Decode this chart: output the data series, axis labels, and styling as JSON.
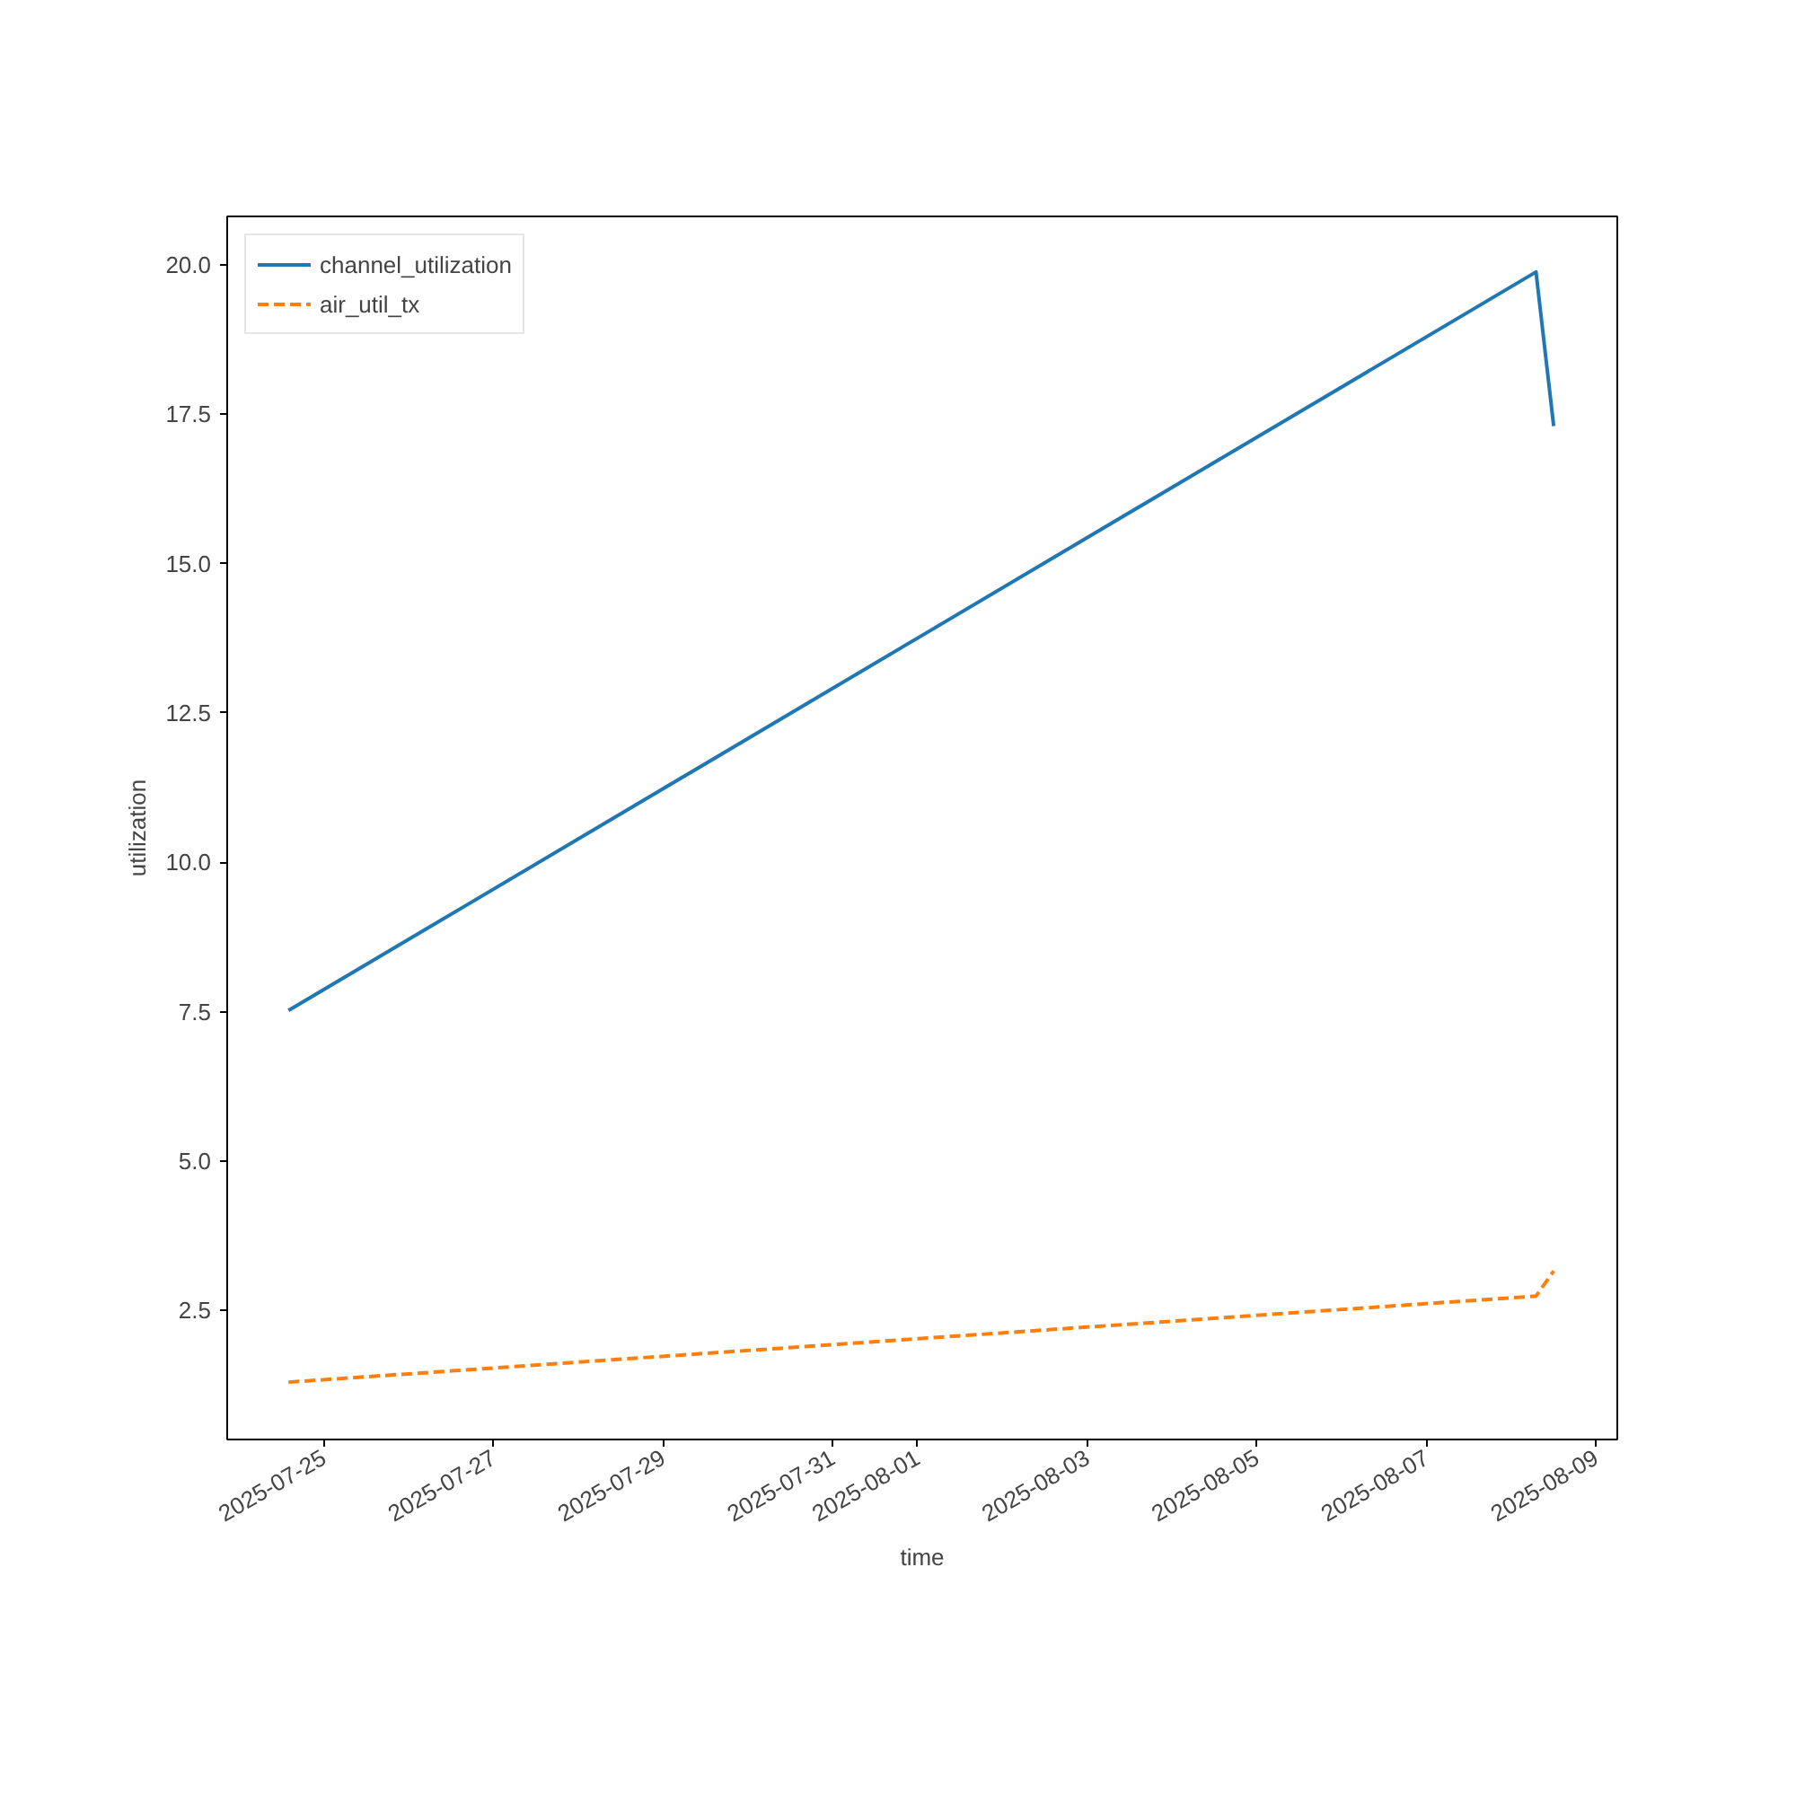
{
  "chart_data": {
    "type": "line",
    "xlabel": "time",
    "ylabel": "utilization",
    "x": [
      "2025-07-24T14:00",
      "2025-08-08T07:00",
      "2025-08-08T12:00"
    ],
    "series": [
      {
        "name": "channel_utilization",
        "color": "#1f77b4",
        "values": [
          7.52,
          19.88,
          17.3
        ],
        "line_style": "solid"
      },
      {
        "name": "air_util_tx",
        "color": "#ff7f0e",
        "values": [
          1.3,
          2.74,
          3.16
        ],
        "line_style": "dashed"
      }
    ],
    "xlim": [
      "2025-07-23T20:40",
      "2025-08-09T06:00"
    ],
    "xticks": [
      "2025-07-25",
      "2025-07-27",
      "2025-07-29",
      "2025-07-31",
      "2025-08-01",
      "2025-08-03",
      "2025-08-05",
      "2025-08-07",
      "2025-08-09"
    ],
    "ylim": [
      0.34,
      20.81
    ],
    "yticks": [
      {
        "value": 2.5,
        "label": "2.5"
      },
      {
        "value": 5,
        "label": "5.0"
      },
      {
        "value": 7.5,
        "label": "7.5"
      },
      {
        "value": 10,
        "label": "10.0"
      },
      {
        "value": 12.5,
        "label": "12.5"
      },
      {
        "value": 15,
        "label": "15.0"
      },
      {
        "value": 17.5,
        "label": "17.5"
      },
      {
        "value": 20,
        "label": "20.0"
      }
    ],
    "legend": "top left",
    "grid": false
  }
}
